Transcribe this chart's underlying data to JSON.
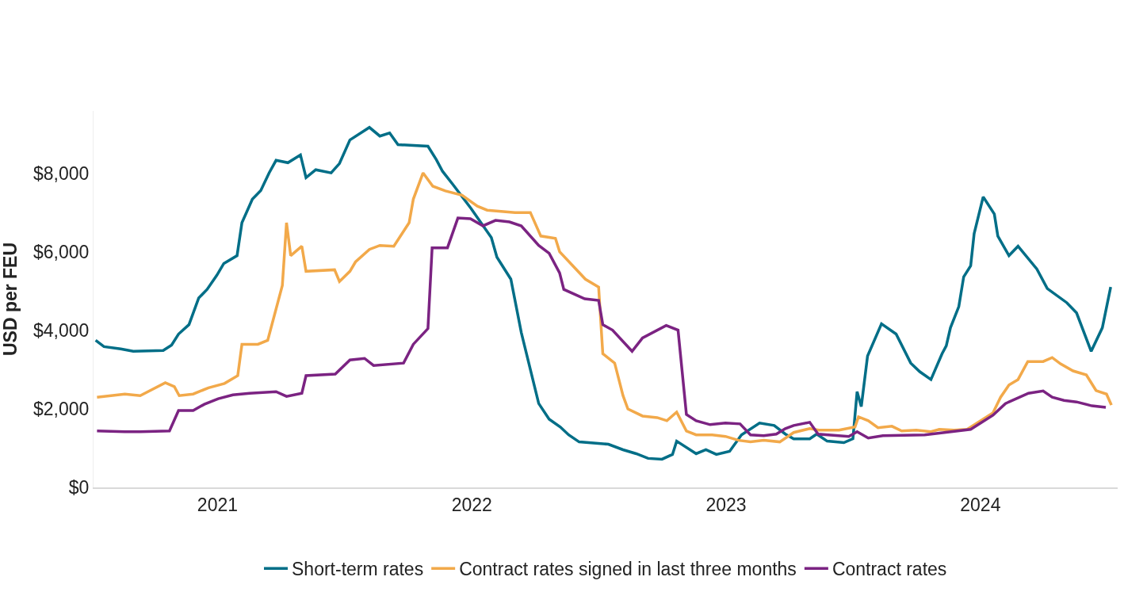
{
  "chart_data": {
    "type": "line",
    "ylabel": "USD per FEU",
    "xlim": [
      "2020-07-07",
      "2024-07-16"
    ],
    "xticks": [
      "2021",
      "2022",
      "2023",
      "2024"
    ],
    "ylim": [
      0,
      9600
    ],
    "yticks": [
      {
        "value": 0,
        "label": "$0"
      },
      {
        "value": 2000,
        "label": "$2,000"
      },
      {
        "value": 4000,
        "label": "$4,000"
      },
      {
        "value": 6000,
        "label": "$6,000"
      },
      {
        "value": 8000,
        "label": "$8,000"
      }
    ],
    "grid": false,
    "legend": "bottom",
    "line_style": "solid",
    "marker": "none",
    "series": [
      {
        "name": "Short-term rates",
        "color": "#006e87",
        "x": [
          "2020-07-10",
          "2020-07-22",
          "2020-08-15",
          "2020-09-02",
          "2020-10-15",
          "2020-10-27",
          "2020-11-06",
          "2020-11-21",
          "2020-12-05",
          "2020-12-17",
          "2020-12-31",
          "2021-01-10",
          "2021-01-29",
          "2021-02-05",
          "2021-02-20",
          "2021-03-04",
          "2021-03-16",
          "2021-03-26",
          "2021-04-12",
          "2021-04-30",
          "2021-05-08",
          "2021-05-22",
          "2021-06-13",
          "2021-06-25",
          "2021-07-10",
          "2021-08-07",
          "2021-08-22",
          "2021-09-05",
          "2021-09-17",
          "2021-10-30",
          "2021-11-11",
          "2021-11-20",
          "2021-12-05",
          "2021-12-31",
          "2022-01-29",
          "2022-02-06",
          "2022-02-26",
          "2022-03-13",
          "2022-04-07",
          "2022-04-22",
          "2022-05-08",
          "2022-05-20",
          "2022-06-04",
          "2022-07-16",
          "2022-08-06",
          "2022-08-25",
          "2022-09-11",
          "2022-10-01",
          "2022-10-16",
          "2022-10-22",
          "2022-11-19",
          "2022-12-03",
          "2022-12-18",
          "2023-01-06",
          "2023-01-23",
          "2023-02-18",
          "2023-03-11",
          "2023-03-27",
          "2023-04-08",
          "2023-05-01",
          "2023-05-11",
          "2023-05-26",
          "2023-06-19",
          "2023-07-02",
          "2023-07-08",
          "2023-07-14",
          "2023-07-23",
          "2023-08-12",
          "2023-09-02",
          "2023-09-23",
          "2023-10-06",
          "2023-10-22",
          "2023-11-07",
          "2023-11-13",
          "2023-11-19",
          "2023-12-01",
          "2023-12-08",
          "2023-12-18",
          "2023-12-23",
          "2024-01-05",
          "2024-01-21",
          "2024-01-26",
          "2024-02-11",
          "2024-02-24",
          "2024-03-22",
          "2024-04-06",
          "2024-05-04",
          "2024-05-18",
          "2024-06-08",
          "2024-06-24",
          "2024-07-06"
        ],
        "values": [
          3750,
          3590,
          3530,
          3470,
          3490,
          3630,
          3910,
          4150,
          4830,
          5050,
          5410,
          5710,
          5910,
          6750,
          7350,
          7570,
          8020,
          8340,
          8280,
          8480,
          7900,
          8100,
          8020,
          8260,
          8860,
          9180,
          8960,
          9040,
          8740,
          8700,
          8360,
          8060,
          7720,
          7110,
          6370,
          5870,
          5310,
          3950,
          2140,
          1740,
          1540,
          1340,
          1160,
          1100,
          960,
          860,
          740,
          720,
          840,
          1180,
          860,
          960,
          840,
          920,
          1340,
          1640,
          1580,
          1360,
          1240,
          1240,
          1360,
          1180,
          1140,
          1240,
          2440,
          2060,
          3350,
          4170,
          3910,
          3170,
          2950,
          2750,
          3410,
          3610,
          4070,
          4610,
          5370,
          5650,
          6470,
          7410,
          6970,
          6410,
          5910,
          6150,
          5570,
          5070,
          4710,
          4450,
          3470,
          4070,
          5110
        ]
      },
      {
        "name": "Contract rates signed in last three months",
        "color": "#f2a94a",
        "x": [
          "2020-07-12",
          "2020-08-21",
          "2020-09-12",
          "2020-10-18",
          "2020-10-31",
          "2020-11-07",
          "2020-11-27",
          "2020-12-19",
          "2021-01-11",
          "2021-01-30",
          "2021-02-05",
          "2021-02-28",
          "2021-03-14",
          "2021-04-04",
          "2021-04-10",
          "2021-04-16",
          "2021-05-02",
          "2021-05-08",
          "2021-06-18",
          "2021-06-25",
          "2021-07-10",
          "2021-07-18",
          "2021-08-07",
          "2021-08-22",
          "2021-09-11",
          "2021-10-03",
          "2021-10-09",
          "2021-10-23",
          "2021-11-06",
          "2021-11-24",
          "2021-12-18",
          "2022-01-09",
          "2022-01-23",
          "2022-03-04",
          "2022-03-26",
          "2022-04-10",
          "2022-05-01",
          "2022-05-07",
          "2022-05-25",
          "2022-06-13",
          "2022-07-02",
          "2022-07-08",
          "2022-07-25",
          "2022-08-06",
          "2022-08-13",
          "2022-09-03",
          "2022-09-24",
          "2022-10-08",
          "2022-10-22",
          "2022-11-05",
          "2022-11-19",
          "2022-12-12",
          "2022-12-31",
          "2023-01-19",
          "2023-02-05",
          "2023-02-24",
          "2023-03-19",
          "2023-04-08",
          "2023-05-01",
          "2023-05-14",
          "2023-06-12",
          "2023-07-05",
          "2023-07-10",
          "2023-07-24",
          "2023-08-07",
          "2023-08-27",
          "2023-09-10",
          "2023-10-01",
          "2023-10-22",
          "2023-11-03",
          "2023-11-24",
          "2023-12-13",
          "2024-01-19",
          "2024-01-30",
          "2024-02-11",
          "2024-02-24",
          "2024-03-09",
          "2024-03-31",
          "2024-04-13",
          "2024-04-25",
          "2024-05-13",
          "2024-06-01",
          "2024-06-15",
          "2024-06-30",
          "2024-07-07"
        ],
        "values": [
          2300,
          2380,
          2340,
          2670,
          2570,
          2340,
          2380,
          2540,
          2650,
          2850,
          3650,
          3650,
          3750,
          5150,
          6750,
          5910,
          6150,
          5510,
          5550,
          5250,
          5510,
          5750,
          6070,
          6170,
          6150,
          6750,
          7350,
          8020,
          7680,
          7560,
          7450,
          7170,
          7070,
          7010,
          7010,
          6410,
          6350,
          6010,
          5670,
          5310,
          5110,
          3410,
          3170,
          2340,
          2000,
          1820,
          1780,
          1700,
          1920,
          1440,
          1340,
          1340,
          1300,
          1200,
          1160,
          1200,
          1160,
          1400,
          1500,
          1460,
          1460,
          1540,
          1800,
          1700,
          1520,
          1560,
          1440,
          1460,
          1420,
          1480,
          1460,
          1480,
          1900,
          2300,
          2610,
          2750,
          3210,
          3210,
          3310,
          3150,
          2970,
          2870,
          2470,
          2380,
          2100
        ]
      },
      {
        "name": "Contract rates",
        "color": "#7b2382",
        "x": [
          "2020-07-12",
          "2020-08-21",
          "2020-09-12",
          "2020-10-24",
          "2020-11-06",
          "2020-11-27",
          "2020-12-13",
          "2021-01-02",
          "2021-01-23",
          "2021-02-16",
          "2021-03-26",
          "2021-04-10",
          "2021-05-02",
          "2021-05-08",
          "2021-06-19",
          "2021-07-10",
          "2021-07-31",
          "2021-08-13",
          "2021-09-25",
          "2021-10-09",
          "2021-10-30",
          "2021-11-05",
          "2021-11-27",
          "2021-12-12",
          "2021-12-30",
          "2022-01-17",
          "2022-02-04",
          "2022-02-24",
          "2022-03-13",
          "2022-04-07",
          "2022-04-22",
          "2022-05-07",
          "2022-05-13",
          "2022-06-12",
          "2022-07-02",
          "2022-07-08",
          "2022-07-22",
          "2022-08-19",
          "2022-09-03",
          "2022-10-07",
          "2022-10-24",
          "2022-11-05",
          "2022-11-19",
          "2022-12-09",
          "2022-12-31",
          "2023-01-21",
          "2023-02-05",
          "2023-02-24",
          "2023-03-14",
          "2023-03-27",
          "2023-04-08",
          "2023-05-01",
          "2023-05-13",
          "2023-06-26",
          "2023-07-08",
          "2023-07-24",
          "2023-08-14",
          "2023-10-13",
          "2023-12-18",
          "2024-01-19",
          "2024-02-06",
          "2024-03-10",
          "2024-03-31",
          "2024-04-13",
          "2024-04-30",
          "2024-05-18",
          "2024-06-09",
          "2024-06-29"
        ],
        "values": [
          1440,
          1420,
          1420,
          1440,
          1960,
          1960,
          2120,
          2260,
          2360,
          2400,
          2440,
          2320,
          2400,
          2850,
          2890,
          3250,
          3290,
          3110,
          3170,
          3650,
          4050,
          6110,
          6110,
          6870,
          6850,
          6670,
          6810,
          6770,
          6670,
          6170,
          5970,
          5470,
          5050,
          4810,
          4770,
          4150,
          4010,
          3470,
          3810,
          4130,
          4010,
          1860,
          1700,
          1600,
          1640,
          1620,
          1340,
          1320,
          1360,
          1500,
          1580,
          1660,
          1360,
          1300,
          1420,
          1260,
          1320,
          1340,
          1480,
          1840,
          2140,
          2400,
          2460,
          2300,
          2220,
          2180,
          2080,
          2040
        ]
      }
    ]
  }
}
